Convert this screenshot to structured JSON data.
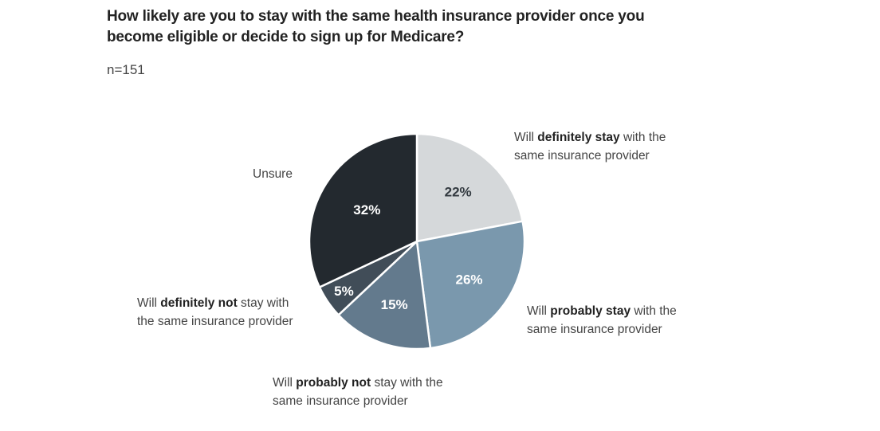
{
  "chart_data": {
    "type": "pie",
    "title": "How likely are you to stay with the same health insurance provider once you become eligible or decide to sign up for Medicare?",
    "subtitle": "n=151",
    "start": "top",
    "direction": "clockwise",
    "slices": [
      {
        "value": 22,
        "data_label": "22%",
        "color": "#d5d8da",
        "text_color": "#333a40",
        "label": {
          "pre": "Will ",
          "bold": "definitely stay",
          "post": " with the same insurance provider"
        }
      },
      {
        "value": 26,
        "data_label": "26%",
        "color": "#7a98ad",
        "text_color": "#ffffff",
        "label": {
          "pre": "Will ",
          "bold": "probably stay",
          "post": " with the same insurance provider"
        }
      },
      {
        "value": 15,
        "data_label": "15%",
        "color": "#637a8d",
        "text_color": "#ffffff",
        "label": {
          "pre": "Will ",
          "bold": "probably not",
          "post": " stay with the same insurance provider"
        }
      },
      {
        "value": 5,
        "data_label": "5%",
        "color": "#414d58",
        "text_color": "#ffffff",
        "label": {
          "pre": "Will ",
          "bold": "definitely not",
          "post": " stay with the same insurance provider"
        }
      },
      {
        "value": 32,
        "data_label": "32%",
        "color": "#23292f",
        "text_color": "#ffffff",
        "label": {
          "pre": "Unsure",
          "bold": "",
          "post": ""
        }
      }
    ]
  }
}
